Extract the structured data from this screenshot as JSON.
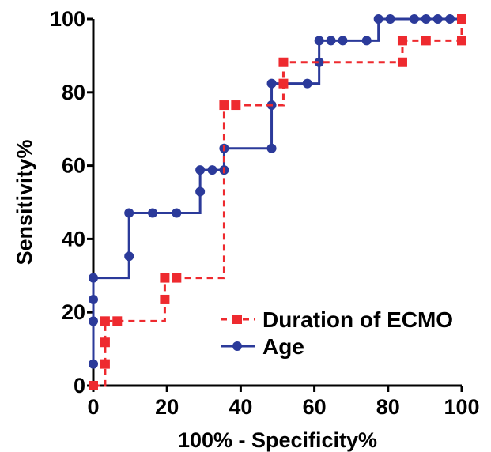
{
  "chart_data": {
    "type": "line",
    "title": "",
    "xlabel": "100% - Specificity%",
    "ylabel": "Sensitivity%",
    "xlim": [
      0,
      100
    ],
    "ylim": [
      0,
      100
    ],
    "x_ticks": [
      "0",
      "20",
      "40",
      "60",
      "80",
      "100"
    ],
    "y_ticks": [
      "0",
      "20",
      "40",
      "60",
      "80",
      "100"
    ],
    "grid": false,
    "legend_position": "bottom-right",
    "series": [
      {
        "name": "Duration of ECMO",
        "color": "#ee2a2f",
        "line_style": "dashed",
        "marker": "square",
        "x": [
          0,
          3.2,
          3.2,
          3.2,
          6.5,
          19.4,
          19.4,
          22.6,
          35.5,
          38.7,
          51.6,
          51.6,
          83.9,
          83.9,
          90.3,
          100,
          100
        ],
        "y": [
          0,
          5.9,
          11.8,
          17.6,
          17.6,
          23.5,
          29.4,
          29.4,
          76.5,
          76.5,
          82.4,
          88.2,
          88.2,
          94.1,
          94.1,
          94.1,
          100
        ]
      },
      {
        "name": "Age",
        "color": "#2b3a9a",
        "line_style": "solid",
        "marker": "circle",
        "x": [
          0,
          0,
          0,
          0,
          9.7,
          9.7,
          16.1,
          22.6,
          29,
          29,
          32.3,
          35.5,
          35.5,
          48.4,
          48.4,
          48.4,
          58.1,
          61.3,
          61.3,
          64.5,
          67.7,
          74.2,
          77.4,
          80.6,
          87.1,
          90.3,
          93.5,
          96.8,
          100
        ],
        "y": [
          5.9,
          17.6,
          23.5,
          29.4,
          35.3,
          47.1,
          47.1,
          47.1,
          52.9,
          58.8,
          58.8,
          58.8,
          64.7,
          64.7,
          76.5,
          82.4,
          82.4,
          88.2,
          94.1,
          94.1,
          94.1,
          94.1,
          100,
          100,
          100,
          100,
          100,
          100,
          100
        ]
      }
    ]
  }
}
